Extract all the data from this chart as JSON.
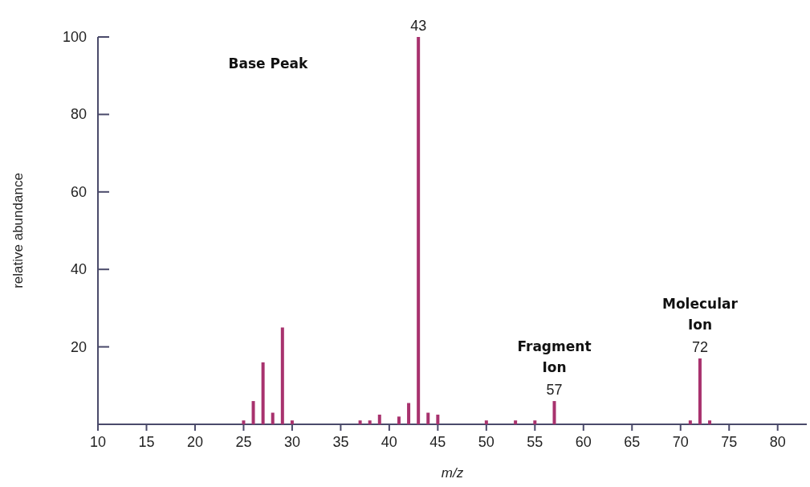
{
  "chart_data": {
    "type": "bar",
    "xlabel": "m/z",
    "ylabel": "relative abundance",
    "x": [
      25,
      26,
      27,
      28,
      29,
      30,
      37,
      38,
      39,
      41,
      42,
      43,
      44,
      45,
      50,
      53,
      55,
      57,
      71,
      72,
      73
    ],
    "values": [
      1,
      6,
      16,
      3,
      25,
      1,
      1,
      1,
      2.5,
      2,
      5.5,
      100,
      3,
      2.5,
      1,
      1,
      1,
      6,
      1,
      17,
      1
    ],
    "color": "#a8326e",
    "xlim": [
      10,
      83
    ],
    "xticks": [
      10,
      15,
      20,
      25,
      30,
      35,
      40,
      45,
      50,
      55,
      60,
      65,
      70,
      75,
      80
    ],
    "ylim": [
      0,
      100
    ],
    "yticks": [
      20,
      40,
      60,
      80,
      100
    ],
    "grid": false,
    "annotations": [
      {
        "text": "43",
        "x": 43,
        "y": 100
      },
      "Base Peak",
      {
        "text": "57",
        "x": 57,
        "y": 6
      },
      {
        "text": "Fragment Ion",
        "x": 57,
        "y": 6
      },
      {
        "text": "72",
        "x": 72,
        "y": 17
      },
      {
        "text": "Molecular Ion",
        "x": 72,
        "y": 17
      }
    ]
  }
}
